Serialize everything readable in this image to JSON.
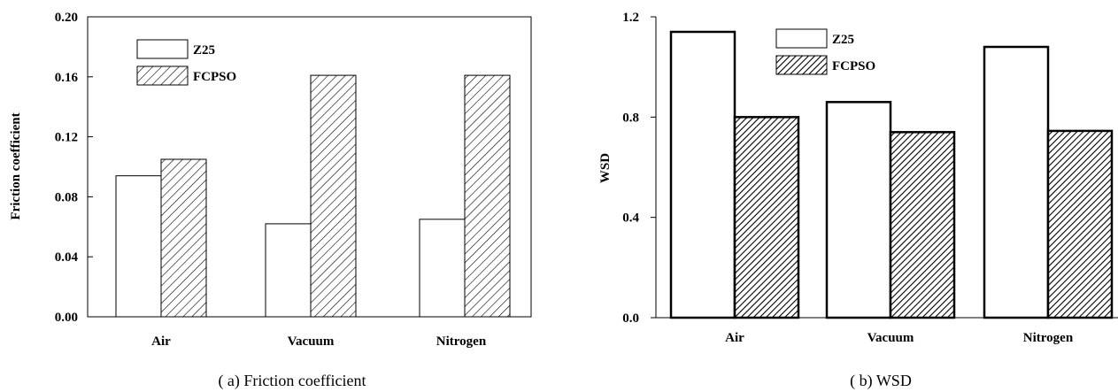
{
  "chart_data": [
    {
      "type": "bar",
      "caption": "( a)  Friction coefficient",
      "ylabel": "Friction coefficient",
      "xlabel": "",
      "categories": [
        "Air",
        "Vacuum",
        "Nitrogen"
      ],
      "series": [
        {
          "name": "Z25",
          "values": [
            0.094,
            0.062,
            0.065
          ],
          "fill": "#ffffff"
        },
        {
          "name": "FCPSO",
          "values": [
            0.105,
            0.161,
            0.161
          ],
          "fill": "hatch"
        }
      ],
      "ylim": [
        0,
        0.2
      ],
      "yticks": [
        "0.00",
        "0.04",
        "0.08",
        "0.12",
        "0.16",
        "0.20"
      ],
      "grid": false,
      "legend": "top-left"
    },
    {
      "type": "bar",
      "caption": "( b)  WSD",
      "ylabel": "WSD",
      "xlabel": "",
      "categories": [
        "Air",
        "Vacuum",
        "Nitrogen"
      ],
      "series": [
        {
          "name": "Z25",
          "values": [
            1.14,
            0.86,
            1.08
          ],
          "fill": "#ffffff"
        },
        {
          "name": "FCPSO",
          "values": [
            0.8,
            0.74,
            0.745
          ],
          "fill": "hatch"
        }
      ],
      "ylim": [
        0,
        1.2
      ],
      "yticks": [
        "0.0",
        "0.4",
        "0.8",
        "1.2"
      ],
      "grid": false,
      "legend": "top-center"
    }
  ]
}
